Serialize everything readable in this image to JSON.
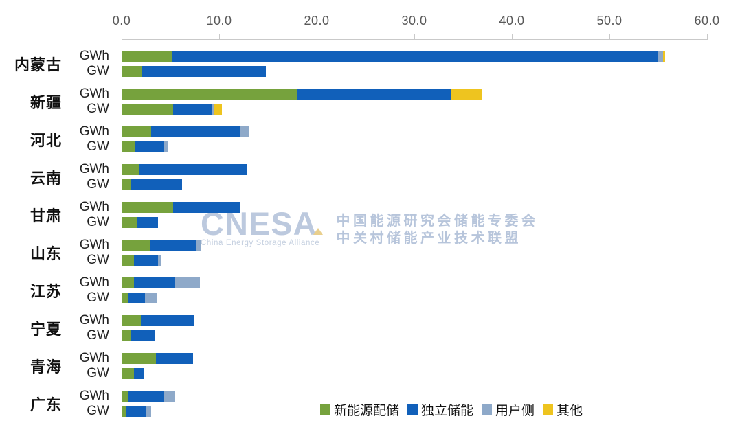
{
  "watermark": {
    "logo_text": "CNESA",
    "logo_subtext": "China Energy Storage Alliance",
    "line1": "中国能源研究会储能专委会",
    "line2": "中关村储能产业技术联盟"
  },
  "chart_data": {
    "type": "bar",
    "orientation": "horizontal",
    "stacked": true,
    "title": "",
    "xlabel": "",
    "ylabel": "",
    "grid": false,
    "legend_position": "bottom-right",
    "x_axis": {
      "min": 0,
      "max": 60,
      "tick_interval": 10,
      "tick_labels": [
        "0.0",
        "10.0",
        "20.0",
        "30.0",
        "40.0",
        "50.0",
        "60.0"
      ]
    },
    "legend": [
      {
        "label": "新能源配储",
        "color": "#76a23d"
      },
      {
        "label": "独立储能",
        "color": "#1160ba"
      },
      {
        "label": "用户侧",
        "color": "#8ea9c9"
      },
      {
        "label": "其他",
        "color": "#eec41f"
      }
    ],
    "provinces": [
      {
        "name": "内蒙古",
        "rows": [
          {
            "unit": "GWh",
            "values": [
              5.2,
              49.8,
              0.5,
              0.2
            ]
          },
          {
            "unit": "GW",
            "values": [
              2.1,
              12.7,
              0,
              0
            ]
          }
        ]
      },
      {
        "name": "新疆",
        "rows": [
          {
            "unit": "GWh",
            "values": [
              18.0,
              15.7,
              0,
              3.3
            ]
          },
          {
            "unit": "GW",
            "values": [
              5.3,
              4.0,
              0.2,
              0.8
            ]
          }
        ]
      },
      {
        "name": "河北",
        "rows": [
          {
            "unit": "GWh",
            "values": [
              3.0,
              9.2,
              0.9,
              0
            ]
          },
          {
            "unit": "GW",
            "values": [
              1.4,
              2.9,
              0.5,
              0
            ]
          }
        ]
      },
      {
        "name": "云南",
        "rows": [
          {
            "unit": "GWh",
            "values": [
              1.8,
              11.0,
              0,
              0
            ]
          },
          {
            "unit": "GW",
            "values": [
              1.0,
              5.2,
              0,
              0
            ]
          }
        ]
      },
      {
        "name": "甘肃",
        "rows": [
          {
            "unit": "GWh",
            "values": [
              5.3,
              6.8,
              0,
              0
            ]
          },
          {
            "unit": "GW",
            "values": [
              1.6,
              2.1,
              0,
              0
            ]
          }
        ]
      },
      {
        "name": "山东",
        "rows": [
          {
            "unit": "GWh",
            "values": [
              2.9,
              4.7,
              0.5,
              0
            ]
          },
          {
            "unit": "GW",
            "values": [
              1.3,
              2.4,
              0.3,
              0
            ]
          }
        ]
      },
      {
        "name": "江苏",
        "rows": [
          {
            "unit": "GWh",
            "values": [
              1.3,
              4.1,
              2.6,
              0
            ]
          },
          {
            "unit": "GW",
            "values": [
              0.6,
              1.8,
              1.2,
              0
            ]
          }
        ]
      },
      {
        "name": "宁夏",
        "rows": [
          {
            "unit": "GWh",
            "values": [
              2.0,
              5.5,
              0,
              0
            ]
          },
          {
            "unit": "GW",
            "values": [
              0.9,
              2.5,
              0,
              0
            ]
          }
        ]
      },
      {
        "name": "青海",
        "rows": [
          {
            "unit": "GWh",
            "values": [
              3.5,
              3.8,
              0,
              0
            ]
          },
          {
            "unit": "GW",
            "values": [
              1.3,
              1.0,
              0,
              0
            ]
          }
        ]
      },
      {
        "name": "广东",
        "rows": [
          {
            "unit": "GWh",
            "values": [
              0.6,
              3.7,
              1.1,
              0
            ]
          },
          {
            "unit": "GW",
            "values": [
              0.4,
              2.1,
              0.5,
              0
            ]
          }
        ]
      }
    ]
  }
}
